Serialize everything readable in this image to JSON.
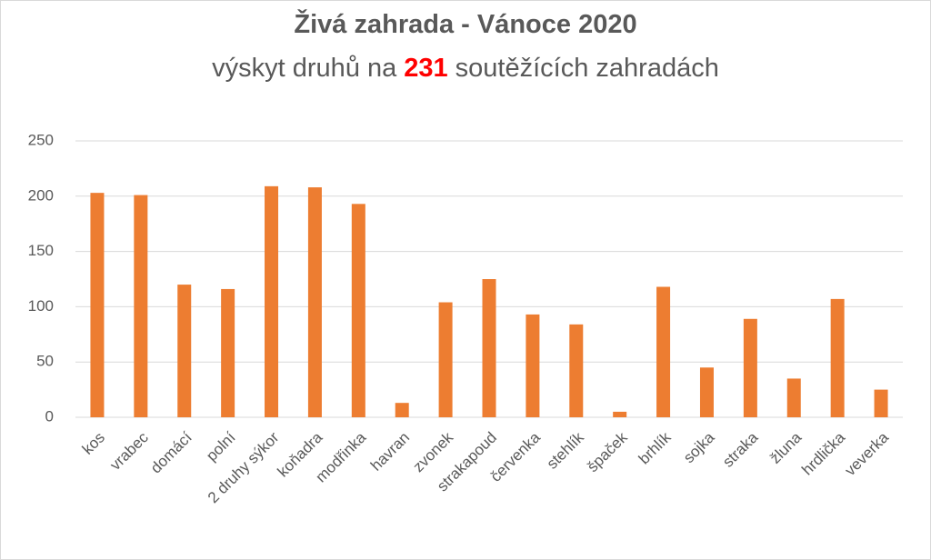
{
  "chart_data": {
    "type": "bar",
    "title": "Živá zahrada - Vánoce 2020",
    "subtitle_start": "výskyt druhů na",
    "subtitle_highlight": "231",
    "subtitle_end": "soutěžících zahradách",
    "categories": [
      "kos",
      "vrabec",
      "domácí",
      "polní",
      "2 druhy sýkor",
      "koňadra",
      "modřinka",
      "havran",
      "zvonek",
      "strakapoud",
      "červenka",
      "stehlík",
      "špaček",
      "brhlík",
      "sojka",
      "straka",
      "žluna",
      "hrdlička",
      "veverka"
    ],
    "values": [
      203,
      201,
      120,
      116,
      209,
      208,
      193,
      13,
      104,
      125,
      93,
      84,
      5,
      118,
      45,
      89,
      35,
      107,
      25
    ],
    "color": "#ed7d31",
    "ylim": [
      0,
      250
    ],
    "yticks": [
      0,
      50,
      100,
      150,
      200,
      250
    ],
    "grid": true
  }
}
